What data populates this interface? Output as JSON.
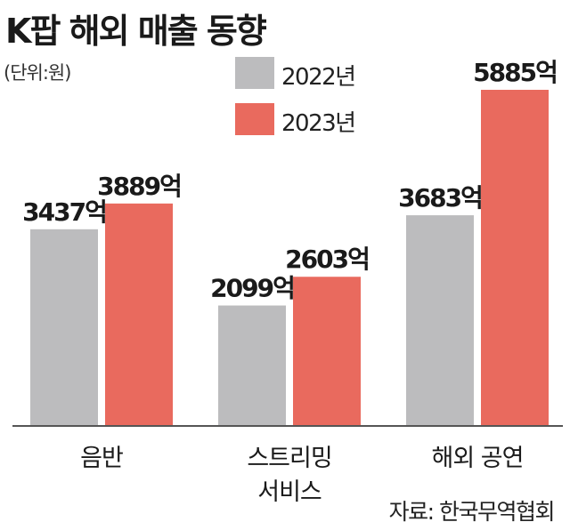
{
  "chart_data": {
    "type": "bar",
    "title": "K팝 해외 매출 동향",
    "unit_label": "(단위:원)",
    "categories": [
      [
        "음반"
      ],
      [
        "스트리밍",
        "서비스"
      ],
      [
        "해외 공연"
      ]
    ],
    "series": [
      {
        "name": "2022년",
        "color": "#bcbcbe",
        "values": [
          3437,
          2099,
          3683
        ],
        "labels": [
          "3437억",
          "2099억",
          "3683억"
        ]
      },
      {
        "name": "2023년",
        "color": "#e96a5e",
        "values": [
          3889,
          2603,
          5885
        ],
        "labels": [
          "3889억",
          "2603억",
          "5885억"
        ]
      }
    ],
    "ylim": [
      0,
      6400
    ],
    "grid": false,
    "legend_position": "top-center",
    "source": "자료: 한국무역협회"
  }
}
